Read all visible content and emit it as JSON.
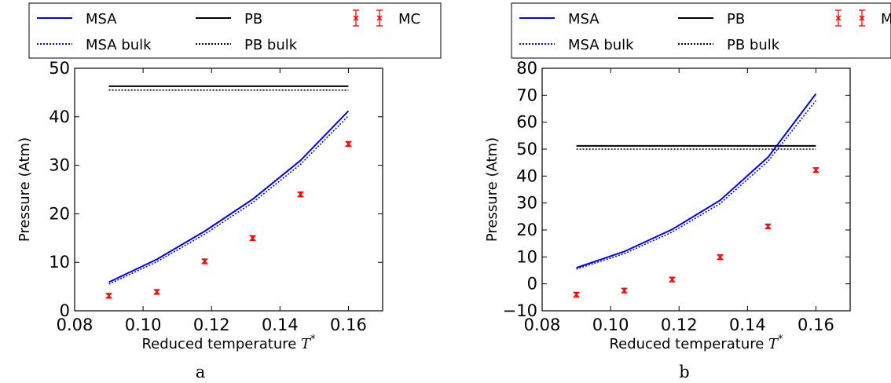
{
  "colors": {
    "msa": "#0000ff",
    "pb": "#000000",
    "mc": "#ff0000"
  },
  "chart_data": [
    {
      "type": "line",
      "panel_label": "a",
      "xlabel": "Reduced temperature",
      "xlabel_symbol": "T*",
      "ylabel": "Pressure (Atm)",
      "xlim": [
        0.08,
        0.17
      ],
      "ylim": [
        0,
        50
      ],
      "xticks": [
        "0.08",
        "0.10",
        "0.12",
        "0.14",
        "0.16"
      ],
      "yticks": [
        "0",
        "10",
        "20",
        "30",
        "40",
        "50"
      ],
      "legend": [
        "MSA",
        "PB",
        "MC",
        "MSA bulk",
        "PB bulk"
      ],
      "legend_position": "top",
      "x": [
        0.09,
        0.104,
        0.118,
        0.132,
        0.146,
        0.16
      ],
      "series": [
        {
          "name": "MSA",
          "style": "solid",
          "color": "blue",
          "values": [
            5.9,
            10.6,
            16.4,
            23.0,
            31.0,
            41.2
          ]
        },
        {
          "name": "MSA bulk",
          "style": "dotted",
          "color": "blue",
          "values": [
            5.5,
            10.1,
            15.8,
            22.3,
            30.2,
            40.2
          ]
        },
        {
          "name": "PB",
          "style": "solid",
          "color": "black",
          "values": [
            46.3,
            46.3,
            46.3,
            46.3,
            46.3,
            46.3
          ]
        },
        {
          "name": "PB bulk",
          "style": "dotted",
          "color": "black",
          "values": [
            45.5,
            45.5,
            45.5,
            45.5,
            45.5,
            45.5
          ]
        },
        {
          "name": "MC",
          "style": "errorbar",
          "color": "red",
          "values": [
            3.1,
            3.9,
            10.2,
            15.0,
            24.0,
            34.4
          ],
          "errors": [
            0.4,
            0.4,
            0.4,
            0.4,
            0.4,
            0.4
          ]
        }
      ]
    },
    {
      "type": "line",
      "panel_label": "b",
      "xlabel": "Reduced temperature",
      "xlabel_symbol": "T*",
      "ylabel": "Pressure (Atm)",
      "xlim": [
        0.08,
        0.17
      ],
      "ylim": [
        -10,
        80
      ],
      "xticks": [
        "0.08",
        "0.10",
        "0.12",
        "0.14",
        "0.16"
      ],
      "yticks": [
        "−10",
        "0",
        "10",
        "20",
        "30",
        "40",
        "50",
        "60",
        "70",
        "80"
      ],
      "legend": [
        "MSA",
        "PB",
        "MC",
        "MSA bulk",
        "PB bulk"
      ],
      "legend_position": "top",
      "x": [
        0.09,
        0.104,
        0.118,
        0.132,
        0.146,
        0.16
      ],
      "series": [
        {
          "name": "MSA",
          "style": "solid",
          "color": "blue",
          "values": [
            6.0,
            12.0,
            20.2,
            31.0,
            47.0,
            70.5
          ]
        },
        {
          "name": "MSA bulk",
          "style": "dotted",
          "color": "blue",
          "values": [
            5.5,
            11.2,
            19.2,
            29.8,
            45.5,
            68.0
          ]
        },
        {
          "name": "PB",
          "style": "solid",
          "color": "black",
          "values": [
            51.2,
            51.2,
            51.2,
            51.2,
            51.2,
            51.2
          ]
        },
        {
          "name": "PB bulk",
          "style": "dotted",
          "color": "black",
          "values": [
            50.0,
            50.0,
            50.0,
            50.0,
            50.0,
            50.0
          ]
        },
        {
          "name": "MC",
          "style": "errorbar",
          "color": "red",
          "values": [
            -4.0,
            -2.5,
            1.6,
            9.9,
            21.3,
            42.2
          ],
          "errors": [
            0.6,
            0.6,
            0.6,
            0.6,
            0.6,
            0.6
          ]
        }
      ]
    }
  ]
}
